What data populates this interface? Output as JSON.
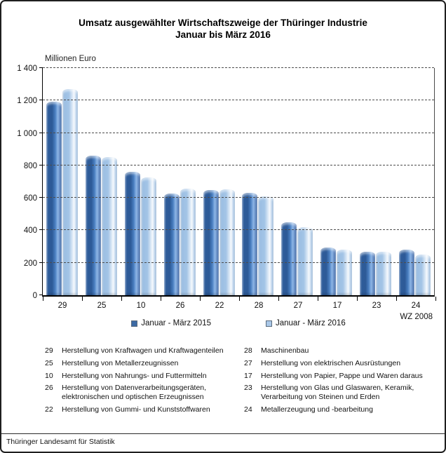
{
  "title": {
    "line1": "Umsatz ausgewählter Wirtschaftszweige der Thüringer Industrie",
    "line2": "Januar bis März 2016"
  },
  "chart_data": {
    "type": "bar",
    "title": "Umsatz ausgewählter Wirtschaftszweige der Thüringer Industrie Januar bis März 2016",
    "unit_label": "Millionen Euro",
    "categories": [
      "29",
      "25",
      "10",
      "26",
      "22",
      "28",
      "27",
      "17",
      "23",
      "24"
    ],
    "category_axis_label": "WZ 2008",
    "series": [
      {
        "name": "Januar - März 2015",
        "color": "#3c6aa4",
        "values": [
          1193,
          858,
          759,
          627,
          647,
          631,
          448,
          294,
          266,
          279
        ]
      },
      {
        "name": "Januar - März 2016",
        "color": "#aac8e8",
        "values": [
          1270,
          853,
          724,
          659,
          651,
          610,
          421,
          279,
          269,
          251
        ]
      }
    ],
    "ylim": [
      0,
      1400
    ],
    "ytick_step": 200,
    "grid": "dashed-horizontal",
    "legend_position": "bottom"
  },
  "footnotes": {
    "rows": [
      {
        "left": {
          "code": "29",
          "text": "Herstellung von Kraftwagen und Kraftwagenteilen"
        },
        "right": {
          "code": "28",
          "text": "Maschinenbau"
        }
      },
      {
        "left": {
          "code": "25",
          "text": "Herstellung von Metallerzeugnissen"
        },
        "right": {
          "code": "27",
          "text": "Herstellung von elektrischen Ausrüstungen"
        }
      },
      {
        "left": {
          "code": "10",
          "text": "Herstellung von Nahrungs- und Futtermitteln"
        },
        "right": {
          "code": "17",
          "text": "Herstellung von Papier, Pappe und Waren daraus"
        }
      },
      {
        "left": {
          "code": "26",
          "text": "Herstellung von Datenverarbeitungsgeräten, elektronischen und optischen Erzeugnissen"
        },
        "right": {
          "code": "23",
          "text": "Herstellung von Glas und Glaswaren, Keramik, Verarbeitung von Steinen und Erden"
        }
      },
      {
        "left": {
          "code": "22",
          "text": "Herstellung von Gummi- und Kunststoffwaren"
        },
        "right": {
          "code": "24",
          "text": "Metallerzeugung und -bearbeitung"
        }
      }
    ]
  },
  "footer": {
    "text": "Thüringer Landesamt für Statistik"
  }
}
